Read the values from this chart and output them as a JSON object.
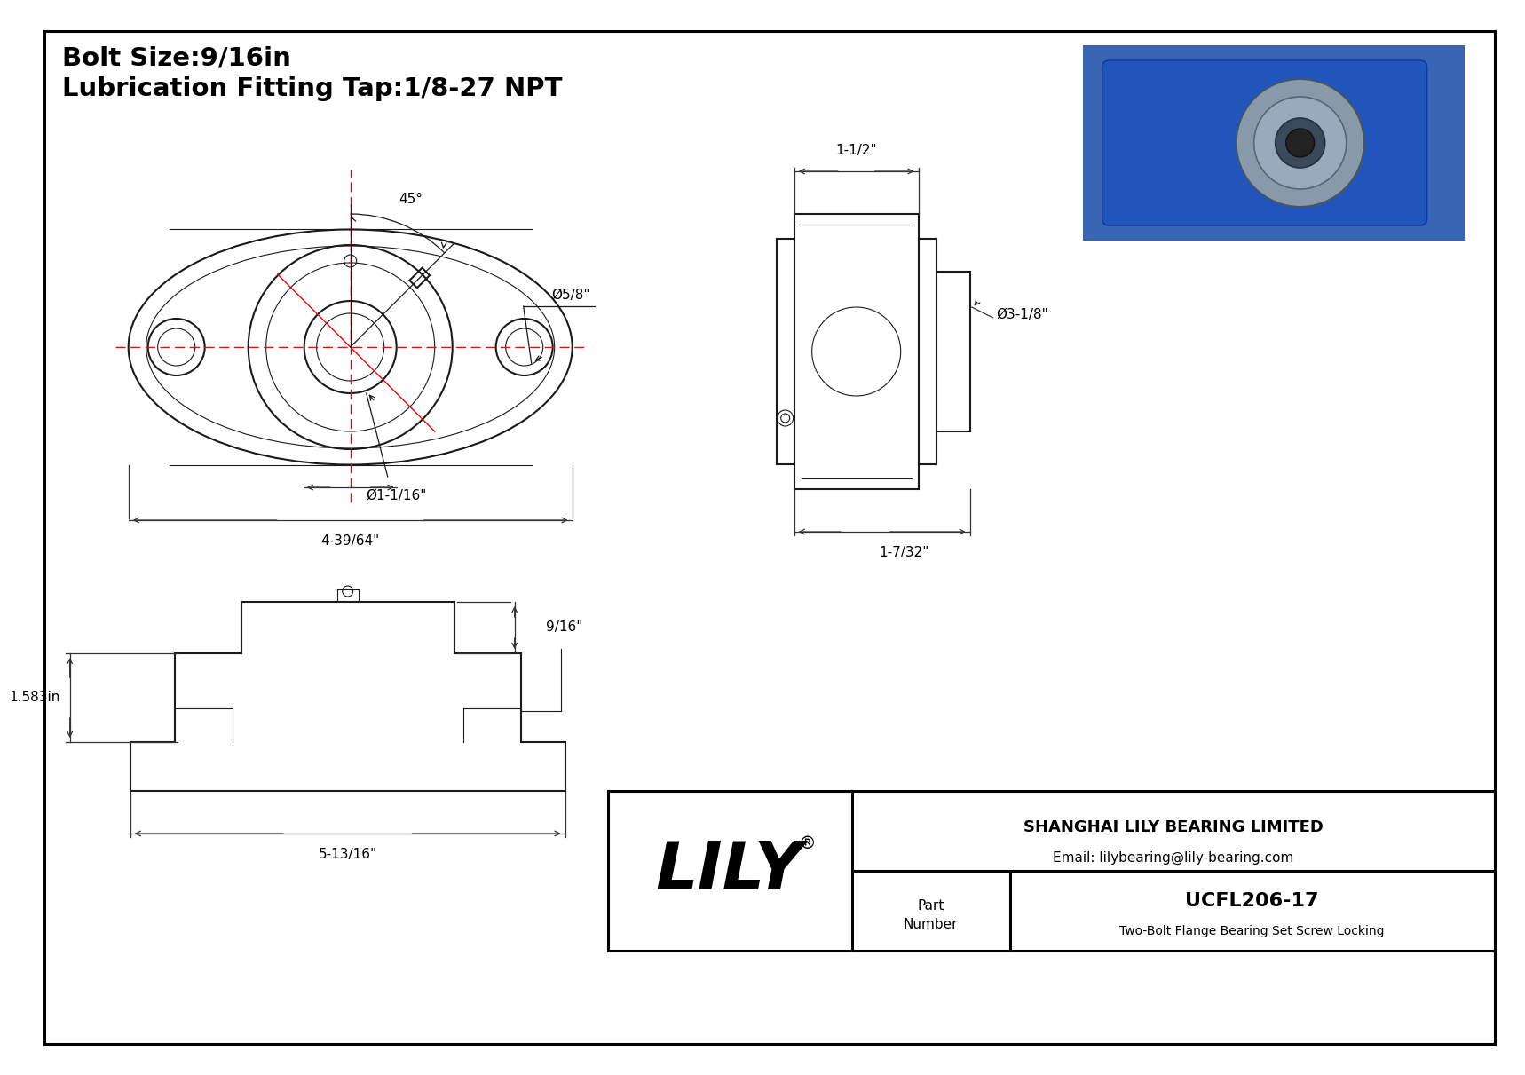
{
  "bg_color": "#ffffff",
  "border_color": "#000000",
  "line_color": "#1a1a1a",
  "dim_color": "#333333",
  "red_color": "#ff0000",
  "text_color": "#000000",
  "title_line1": "Bolt Size:9/16in",
  "title_line2": "Lubrication Fitting Tap:1/8-27 NPT",
  "dim_labels": {
    "bolt_hole": "Ø5/8\"",
    "bore": "Ø1-1/16\"",
    "width_top": "4-39/64\"",
    "side_width": "1-1/2\"",
    "side_od": "Ø3-1/8\"",
    "side_depth": "1-7/32\"",
    "front_height": "1.583in",
    "front_width": "5-13/16\"",
    "front_top": "9/16\"",
    "angle_label": "45°"
  },
  "company_full": "SHANGHAI LILY BEARING LIMITED",
  "email": "Email: lilybearing@lily-bearing.com",
  "part_number": "UCFL206-17",
  "part_desc": "Two-Bolt Flange Bearing Set Screw Locking",
  "part_label": "Part\nNumber"
}
